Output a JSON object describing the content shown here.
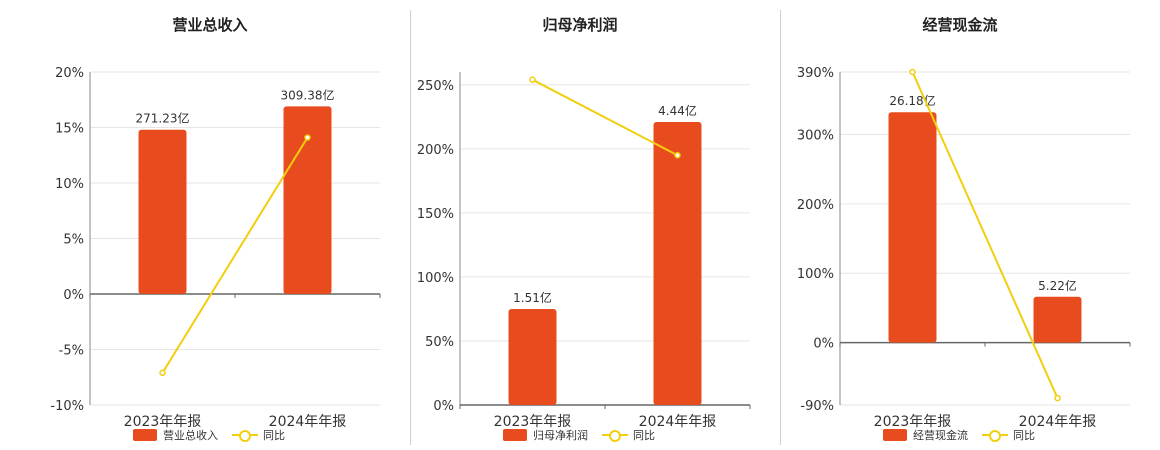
{
  "chart_data": [
    {
      "type": "bar",
      "title": "营业总收入",
      "categories": [
        "2023年年报",
        "2024年年报"
      ],
      "ylim": [
        -10,
        20
      ],
      "yticks": [
        -10,
        -5,
        0,
        5,
        10,
        15,
        20
      ],
      "bar_series": {
        "name": "营业总收入",
        "bar_heights_pct_axis": [
          14.8,
          16.9
        ],
        "labels": [
          "271.23亿",
          "309.38亿"
        ]
      },
      "line_series": {
        "name": "同比",
        "values": [
          -7.1,
          14.1
        ]
      },
      "colors": {
        "bar": "#e84c1e",
        "line": "#f2cf0e"
      },
      "grid": true
    },
    {
      "type": "bar",
      "title": "归母净利润",
      "categories": [
        "2023年年报",
        "2024年年报"
      ],
      "ylim": [
        0,
        260
      ],
      "yticks": [
        0,
        50,
        100,
        150,
        200,
        250
      ],
      "bar_series": {
        "name": "归母净利润",
        "bar_heights_pct_axis": [
          75,
          221
        ],
        "labels": [
          "1.51亿",
          "4.44亿"
        ]
      },
      "line_series": {
        "name": "同比",
        "values": [
          254,
          195
        ]
      },
      "colors": {
        "bar": "#e84c1e",
        "line": "#f2cf0e"
      },
      "grid": true
    },
    {
      "type": "bar",
      "title": "经营现金流",
      "categories": [
        "2023年年报",
        "2024年年报"
      ],
      "ylim": [
        -90,
        390
      ],
      "yticks": [
        -90,
        0,
        100,
        200,
        300,
        390
      ],
      "bar_series": {
        "name": "经营现金流",
        "bar_heights_pct_axis": [
          332,
          66
        ],
        "labels": [
          "26.18亿",
          "5.22亿"
        ]
      },
      "line_series": {
        "name": "同比",
        "values": [
          390,
          -80
        ]
      },
      "colors": {
        "bar": "#e84c1e",
        "line": "#f2cf0e"
      },
      "grid": true
    }
  ]
}
